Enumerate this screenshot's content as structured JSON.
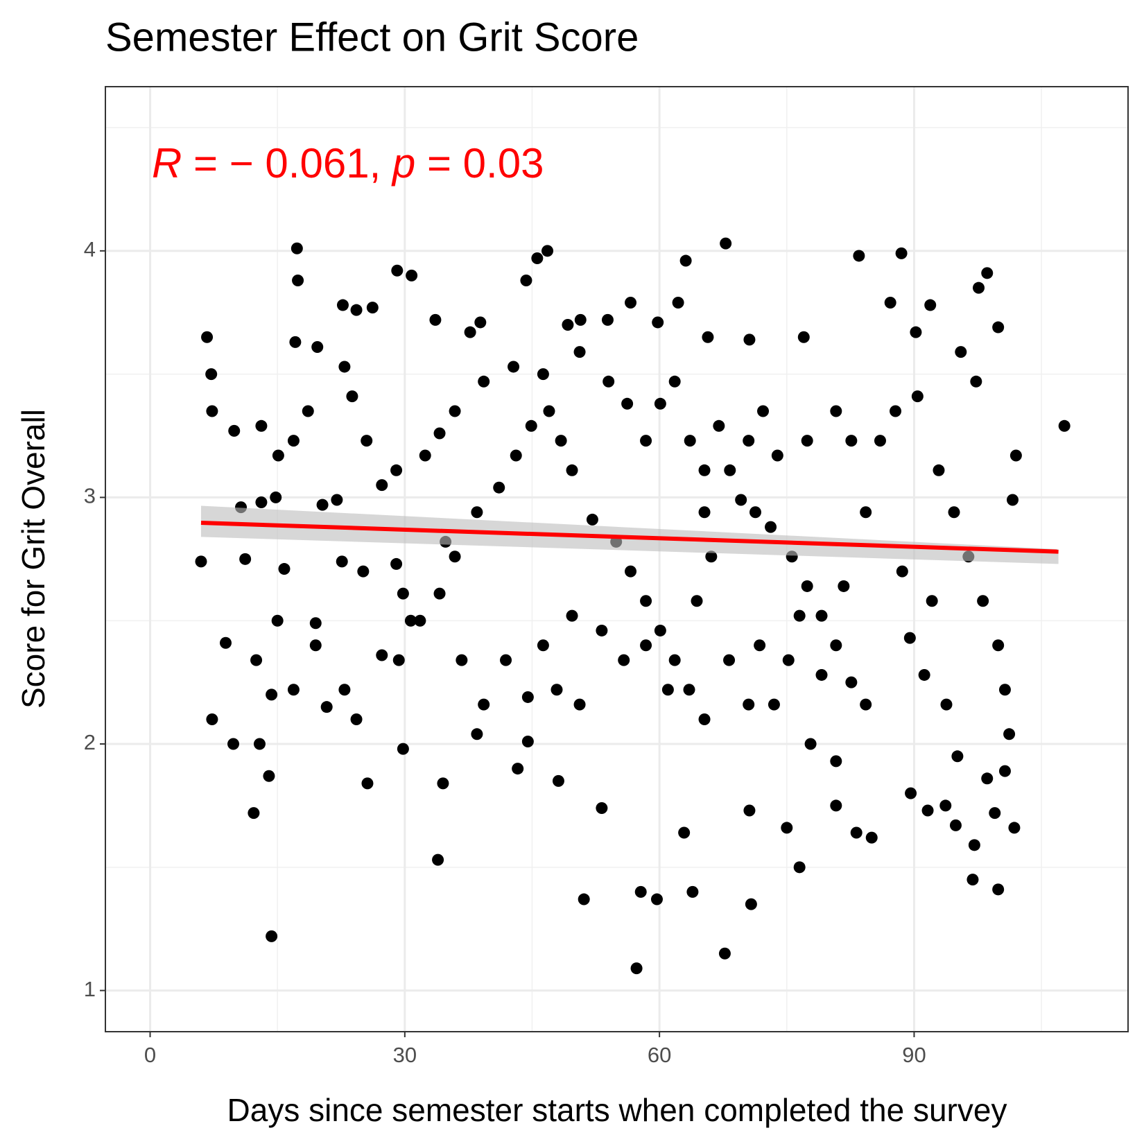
{
  "chart_data": {
    "type": "scatter",
    "title": "Semester Effect on Grit Score",
    "x_label": "Days since semester starts when completed the survey",
    "y_label": "Score for Grit Overall",
    "annotation": {
      "parts": [
        "R",
        " = − 0.061, ",
        "p",
        " = 0.03"
      ],
      "italic": [
        true,
        false,
        true,
        false
      ],
      "color": "#ff0000"
    },
    "xlim": [
      -5.27,
      115.2
    ],
    "ylim": [
      0.833,
      4.666
    ],
    "xticks": [
      0,
      30,
      60,
      90
    ],
    "yticks": [
      1,
      2,
      3,
      4
    ],
    "x_minor_grid": [
      15,
      45,
      75,
      105
    ],
    "y_minor_grid": [
      1.5,
      2.5,
      3.5,
      4.5
    ],
    "grid": true,
    "point_color": "#000000",
    "fit": {
      "color": "#ff0000",
      "band_color": "#bdbdbd",
      "x": [
        6,
        107
      ],
      "y": [
        2.897,
        2.78
      ],
      "ci_lower": [
        2.84,
        2.73
      ],
      "ci_upper": [
        2.966,
        2.79
      ]
    },
    "x": [
      6.0,
      6.7,
      7.2,
      7.3,
      7.3,
      8.9,
      9.8,
      9.9,
      12.2,
      12.9,
      13.1,
      14.3,
      14.0,
      17.3,
      17.4,
      17.1,
      19.7,
      20.8,
      22.7,
      24.3,
      26.2,
      25.6,
      29.1,
      30.8,
      29.8,
      33.9,
      34.5,
      33.6,
      44.3,
      45.6,
      46.8,
      43.3,
      48.1,
      51.1,
      53.2,
      56.6,
      57.3,
      57.8,
      59.7,
      63.1,
      62.2,
      62.9,
      63.9,
      67.8,
      67.7,
      70.8,
      70.6,
      75.0,
      76.5,
      77.8,
      83.5,
      88.5,
      83.2,
      85.0,
      89.6,
      91.6,
      93.7,
      94.9,
      96.9,
      97.1,
      99.9,
      99.5,
      101.8,
      107.7,
      98.6,
      97.6,
      99.9,
      90.2,
      91.9,
      87.2,
      77.0,
      70.6,
      65.7,
      59.8,
      53.9,
      50.7,
      49.2,
      38.9,
      37.7,
      14.3,
      12.5,
      16.9,
      22.9,
      24.3,
      15.0,
      19.5,
      19.5,
      22.0,
      20.3,
      14.8,
      13.1,
      10.7,
      11.2,
      15.8,
      22.6,
      25.1,
      29.0,
      29.8,
      31.8,
      27.3,
      29.3,
      30.7,
      34.1,
      35.9,
      34.8,
      38.5,
      41.1,
      43.1,
      44.9,
      47.0,
      48.4,
      49.7,
      52.1,
      54.9,
      56.6,
      58.4,
      60.1,
      61.8,
      63.5,
      65.3,
      68.3,
      69.6,
      71.3,
      73.1,
      75.6,
      77.4,
      79.1,
      80.8,
      82.6,
      84.3,
      86.0,
      87.8,
      90.4,
      92.9,
      94.7,
      96.4,
      98.1,
      99.9,
      100.7,
      101.2,
      101.6,
      102.0,
      97.3,
      95.5,
      89.5,
      91.2,
      88.6,
      92.1,
      93.8,
      95.1,
      98.6,
      100.7,
      80.8,
      80.8,
      76.5,
      65.3,
      66.1,
      64.4,
      58.4,
      60.1,
      61.8,
      56.2,
      54.0,
      50.6,
      46.3,
      42.8,
      39.3,
      35.9,
      34.1,
      32.4,
      29.0,
      27.3,
      25.5,
      23.8,
      22.9,
      18.6,
      16.9,
      15.1,
      36.7,
      39.3,
      41.9,
      44.5,
      46.3,
      47.9,
      50.6,
      38.5,
      44.5,
      49.7,
      53.2,
      55.8,
      58.4,
      61.0,
      68.2,
      71.8,
      73.5,
      75.2,
      70.5,
      79.1,
      81.7,
      84.3,
      82.6,
      80.8,
      77.4,
      73.9,
      72.2,
      70.5,
      67.0,
      63.6,
      65.3
    ],
    "y": [
      2.74,
      3.65,
      3.5,
      3.35,
      2.1,
      2.41,
      2.0,
      3.27,
      1.72,
      2.0,
      3.29,
      1.22,
      1.87,
      4.01,
      3.88,
      3.63,
      3.61,
      2.15,
      3.78,
      3.76,
      3.77,
      1.84,
      3.92,
      3.9,
      1.98,
      1.53,
      1.84,
      3.72,
      3.88,
      3.97,
      4.0,
      1.9,
      1.85,
      1.37,
      1.74,
      3.79,
      1.09,
      1.4,
      1.37,
      3.96,
      3.79,
      1.64,
      1.4,
      4.03,
      1.15,
      1.35,
      1.73,
      1.66,
      1.5,
      2.0,
      3.98,
      3.99,
      1.64,
      1.62,
      1.8,
      1.73,
      1.75,
      1.67,
      1.45,
      1.59,
      1.41,
      1.72,
      1.66,
      3.29,
      3.91,
      3.85,
      3.69,
      3.67,
      3.78,
      3.79,
      3.65,
      3.64,
      3.65,
      3.71,
      3.72,
      3.72,
      3.7,
      3.71,
      3.67,
      2.2,
      2.34,
      2.22,
      2.22,
      2.1,
      2.5,
      2.49,
      2.4,
      2.99,
      2.97,
      3.0,
      2.98,
      2.96,
      2.75,
      2.71,
      2.74,
      2.7,
      2.73,
      2.61,
      2.5,
      2.36,
      2.34,
      2.5,
      2.61,
      2.76,
      2.82,
      2.94,
      3.04,
      3.17,
      3.29,
      3.35,
      3.23,
      3.11,
      2.91,
      2.82,
      2.7,
      2.58,
      2.46,
      2.34,
      2.22,
      2.1,
      3.11,
      2.99,
      2.94,
      2.88,
      2.76,
      2.64,
      2.52,
      2.4,
      2.25,
      2.16,
      3.23,
      3.35,
      3.41,
      3.11,
      2.94,
      2.76,
      2.58,
      2.4,
      2.22,
      2.04,
      2.99,
      3.17,
      3.47,
      3.59,
      2.43,
      2.28,
      2.7,
      2.58,
      2.16,
      1.95,
      1.86,
      1.89,
      1.75,
      1.93,
      2.52,
      2.94,
      2.76,
      2.58,
      3.23,
      3.38,
      3.47,
      3.38,
      3.47,
      3.59,
      3.5,
      3.53,
      3.47,
      3.35,
      3.26,
      3.17,
      3.11,
      3.05,
      3.23,
      3.41,
      3.53,
      3.35,
      3.23,
      3.17,
      2.34,
      2.16,
      2.34,
      2.19,
      2.4,
      2.22,
      2.16,
      2.04,
      2.01,
      2.52,
      2.46,
      2.34,
      2.4,
      2.22,
      2.34,
      2.4,
      2.16,
      2.34,
      2.16,
      2.28,
      2.64,
      2.94,
      3.23,
      3.35,
      3.23,
      3.17,
      3.35,
      3.23,
      3.29,
      3.23,
      3.11
    ]
  }
}
